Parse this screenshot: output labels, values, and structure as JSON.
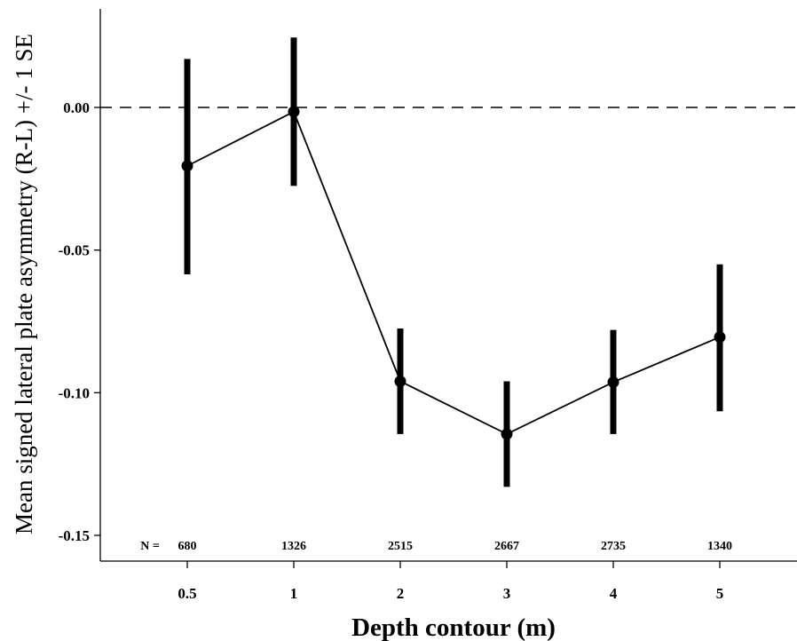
{
  "chart_data": {
    "type": "line",
    "title": "",
    "xlabel": "Depth contour (m)",
    "ylabel": "Mean signed lateral plate asymmetry (R-L) +/- 1 SE",
    "categories": [
      "0.5",
      "1",
      "2",
      "3",
      "4",
      "5"
    ],
    "series": [
      {
        "values": [
          -0.0205,
          -0.0015,
          -0.096,
          -0.1145,
          -0.0963,
          -0.0805
        ],
        "se_upper": [
          0.017,
          0.0245,
          -0.0775,
          -0.096,
          -0.078,
          -0.055
        ],
        "se_lower": [
          -0.0585,
          -0.0275,
          -0.1145,
          -0.133,
          -0.1145,
          -0.1065
        ]
      }
    ],
    "sample_size_prefix": "N =",
    "sample_sizes": [
      "680",
      "1326",
      "2515",
      "2667",
      "2735",
      "1340"
    ],
    "yticks": [
      0.0,
      -0.05,
      -0.1,
      -0.15
    ],
    "ytick_labels": [
      "0.00",
      "-0.05",
      "-0.10",
      "-0.15"
    ],
    "ylim": [
      -0.158,
      0.034
    ],
    "reference_line": 0.0,
    "grid": false,
    "colors": {
      "line": "#000000",
      "markers": "#000000",
      "reference": "#000000"
    }
  }
}
